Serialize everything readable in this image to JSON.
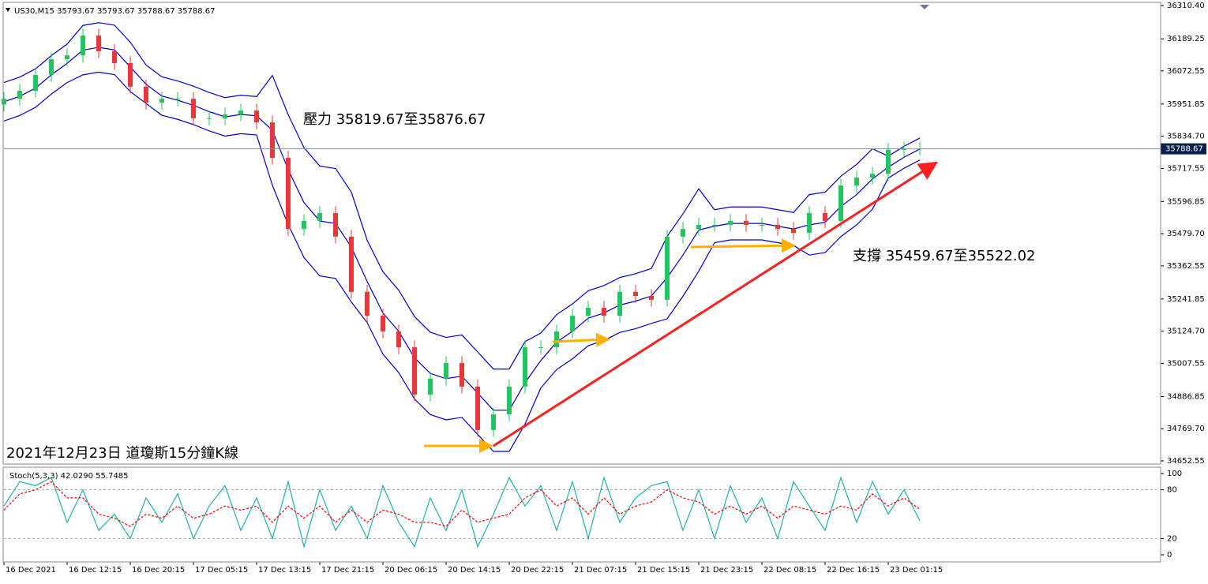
{
  "header": "US30,M15  35793.67 35793.67 35788.67 35788.67",
  "chart_data": [
    {
      "type": "candlestick",
      "annotations": [
        "壓力 35819.67至35876.67",
        "支撐 35459.67至35522.02",
        "2021年12月23日 道瓊斯15分鐘K線"
      ],
      "current_price": 35788.67,
      "x": [
        0,
        8,
        16,
        24,
        32,
        40,
        48,
        56,
        64,
        72,
        80,
        88,
        96,
        104,
        112,
        120,
        128,
        136,
        144,
        152,
        160,
        168,
        176,
        184,
        192,
        200,
        208,
        216,
        224,
        232,
        240,
        248,
        256,
        264,
        272,
        280,
        288,
        296,
        304,
        312,
        320,
        328,
        336,
        344,
        352,
        360,
        368,
        376,
        384,
        392,
        400,
        408,
        416,
        424,
        432,
        440,
        448,
        456,
        464
      ],
      "open": [
        35950,
        35971,
        36000,
        36058,
        36115,
        36129,
        36201,
        36144,
        36101,
        36015,
        35957,
        35971,
        35971,
        35900,
        35900,
        35914,
        35928,
        35885,
        35756,
        35497,
        35526,
        35555,
        35469,
        35268,
        35181,
        35124,
        35066,
        34894,
        34952,
        35009,
        34923,
        34765,
        34822,
        34923,
        35066,
        35066,
        35124,
        35181,
        35210,
        35181,
        35268,
        35253,
        35239,
        35469,
        35497,
        35512,
        35512,
        35526,
        35512,
        35512,
        35497,
        35483,
        35555,
        35526,
        35655,
        35684,
        35698,
        35785,
        35790
      ],
      "high": [
        35996,
        36025,
        36083,
        36140,
        36154,
        36226,
        36226,
        36169,
        36126,
        36040,
        35996,
        35996,
        35996,
        35925,
        35939,
        35953,
        35953,
        35910,
        35781,
        35551,
        35580,
        35580,
        35494,
        35293,
        35206,
        35149,
        35091,
        34977,
        35034,
        35034,
        34948,
        34847,
        34948,
        35091,
        35091,
        35149,
        35206,
        35235,
        35235,
        35293,
        35293,
        35278,
        35494,
        35522,
        35537,
        35537,
        35551,
        35551,
        35537,
        35537,
        35522,
        35580,
        35580,
        35680,
        35709,
        35723,
        35810,
        35815,
        35815
      ],
      "low": [
        35925,
        35946,
        35975,
        36033,
        36090,
        36104,
        36119,
        36076,
        35990,
        35932,
        35932,
        35946,
        35875,
        35875,
        35875,
        35889,
        35860,
        35731,
        35472,
        35472,
        35501,
        35444,
        35243,
        35156,
        35099,
        35041,
        34869,
        34869,
        34927,
        34898,
        34740,
        34740,
        34797,
        34898,
        35041,
        35041,
        35099,
        35156,
        35156,
        35156,
        35228,
        35214,
        35214,
        35444,
        35472,
        35487,
        35487,
        35487,
        35487,
        35472,
        35458,
        35458,
        35501,
        35501,
        35630,
        35659,
        35673,
        35760,
        35765
      ],
      "close": [
        35971,
        36000,
        36058,
        36115,
        36129,
        36201,
        36144,
        36101,
        36015,
        35957,
        35971,
        35971,
        35900,
        35900,
        35914,
        35928,
        35885,
        35756,
        35497,
        35526,
        35555,
        35469,
        35268,
        35181,
        35124,
        35066,
        34894,
        34952,
        35009,
        34923,
        34765,
        34822,
        34923,
        35066,
        35066,
        35124,
        35181,
        35210,
        35181,
        35268,
        35253,
        35239,
        35469,
        35497,
        35512,
        35512,
        35526,
        35512,
        35512,
        35497,
        35483,
        35555,
        35526,
        35655,
        35684,
        35698,
        35785,
        35790,
        35790
      ],
      "bands": {
        "color": "#0000cd",
        "upper": [
          36030,
          36050,
          36080,
          36128,
          36170,
          36238,
          36248,
          36239,
          36177,
          36094,
          36051,
          36036,
          36017,
          35994,
          35975,
          35984,
          35979,
          36056,
          35913,
          35793,
          35726,
          35717,
          35631,
          35456,
          35341,
          35274,
          35178,
          35121,
          35102,
          35111,
          35049,
          34987,
          34987,
          35087,
          35118,
          35185,
          35224,
          35272,
          35291,
          35320,
          35334,
          35353,
          35470,
          35552,
          35643,
          35567,
          35577,
          35577,
          35577,
          35567,
          35557,
          35622,
          35631,
          35689,
          35732,
          35789,
          35762,
          35798,
          35828
        ],
        "middle": [
          35960,
          35980,
          36010,
          36058,
          36100,
          36148,
          36158,
          36149,
          36087,
          36024,
          35981,
          35966,
          35947,
          35924,
          35905,
          35914,
          35909,
          35856,
          35713,
          35593,
          35526,
          35517,
          35431,
          35306,
          35191,
          35124,
          35028,
          34971,
          34952,
          34961,
          34899,
          34837,
          34837,
          34937,
          35018,
          35085,
          35124,
          35172,
          35191,
          35220,
          35234,
          35253,
          35320,
          35402,
          35493,
          35507,
          35517,
          35517,
          35517,
          35507,
          35497,
          35512,
          35521,
          35579,
          35622,
          35679,
          35722,
          35758,
          35788
        ],
        "lower": [
          35890,
          35910,
          35940,
          35988,
          36030,
          36058,
          36068,
          36059,
          35997,
          35954,
          35911,
          35896,
          35877,
          35854,
          35835,
          35844,
          35839,
          35656,
          35513,
          35393,
          35326,
          35317,
          35231,
          35156,
          35041,
          34974,
          34878,
          34821,
          34802,
          34811,
          34749,
          34687,
          34687,
          34787,
          34918,
          34985,
          35024,
          35072,
          35091,
          35120,
          35134,
          35153,
          35170,
          35252,
          35343,
          35447,
          35457,
          35457,
          35457,
          35447,
          35437,
          35402,
          35411,
          35469,
          35512,
          35569,
          35682,
          35718,
          35748
        ]
      },
      "up_color": "#22c55e",
      "down_color": "#e53935",
      "xlim": [
        0,
        586
      ],
      "ylim": [
        34641,
        36322
      ],
      "yticks": [
        {
          "value": 36310.4,
          "label": "36310.40"
        },
        36189.25,
        36072.55,
        35951.85,
        {
          "value": 35834.7,
          "label": "35834.70"
        },
        35717.55,
        35596.85,
        {
          "value": 35479.7,
          "label": "35479.70"
        },
        35362.55,
        35241.85,
        {
          "value": 35124.7,
          "label": "35124.70"
        },
        35007.55,
        34886.85,
        {
          "value": 34769.7,
          "label": "34769.70"
        },
        34652.55
      ],
      "xticks": [
        {
          "value": 0,
          "label": "16 Dec 2021"
        },
        {
          "value": 32,
          "label": "16 Dec 12:15"
        },
        {
          "value": 64,
          "label": "16 Dec 20:15"
        },
        {
          "value": 96,
          "label": "17 Dec 05:15"
        },
        {
          "value": 128,
          "label": "17 Dec 13:15"
        },
        {
          "value": 160,
          "label": "17 Dec 21:15"
        },
        {
          "value": 192,
          "label": "20 Dec 06:15"
        },
        {
          "value": 224,
          "label": "20 Dec 14:15"
        },
        {
          "value": 256,
          "label": "20 Dec 22:15"
        },
        {
          "value": 288,
          "label": "21 Dec 07:15"
        },
        {
          "value": 320,
          "label": "21 Dec 15:15"
        },
        {
          "value": 352,
          "label": "21 Dec 23:15"
        },
        {
          "value": 384,
          "label": "22 Dec 08:15"
        },
        {
          "value": 416,
          "label": "22 Dec 16:15"
        },
        {
          "value": 448,
          "label": "23 Dec 01:15"
        }
      ]
    },
    {
      "type": "line",
      "title": "Stoch(5,3,3) 42.0290 55.7485",
      "x": [
        0,
        8,
        16,
        24,
        32,
        40,
        48,
        56,
        64,
        72,
        80,
        88,
        96,
        104,
        112,
        120,
        128,
        136,
        144,
        152,
        160,
        168,
        176,
        184,
        192,
        200,
        208,
        216,
        224,
        232,
        240,
        248,
        256,
        264,
        272,
        280,
        288,
        296,
        304,
        312,
        320,
        328,
        336,
        344,
        352,
        360,
        368,
        376,
        384,
        392,
        400,
        408,
        416,
        424,
        432,
        440,
        448,
        456,
        464
      ],
      "series": [
        {
          "color": "#20b2aa",
          "style": "solid",
          "values": [
            60,
            90,
            85,
            95,
            40,
            80,
            30,
            50,
            20,
            70,
            40,
            75,
            20,
            60,
            85,
            30,
            70,
            20,
            90,
            10,
            80,
            30,
            60,
            20,
            85,
            40,
            10,
            70,
            30,
            80,
            10,
            50,
            95,
            60,
            85,
            30,
            90,
            20,
            95,
            40,
            70,
            85,
            90,
            30,
            80,
            20,
            85,
            40,
            70,
            20,
            90,
            60,
            30,
            95,
            40,
            90,
            50,
            80,
            42
          ]
        },
        {
          "color": "#ff0000",
          "style": "dashed",
          "values": [
            55,
            75,
            80,
            90,
            70,
            70,
            50,
            45,
            35,
            50,
            45,
            60,
            45,
            50,
            60,
            55,
            60,
            40,
            60,
            45,
            60,
            40,
            55,
            40,
            55,
            50,
            40,
            40,
            35,
            55,
            40,
            45,
            50,
            70,
            80,
            60,
            70,
            50,
            70,
            50,
            60,
            65,
            80,
            70,
            65,
            50,
            60,
            50,
            60,
            45,
            60,
            55,
            50,
            60,
            55,
            75,
            60,
            70,
            56
          ]
        }
      ],
      "xlim": [
        0,
        586
      ],
      "ylim": [
        0,
        100
      ],
      "yticks": [
        0,
        20,
        80,
        100
      ],
      "grid": true
    }
  ]
}
